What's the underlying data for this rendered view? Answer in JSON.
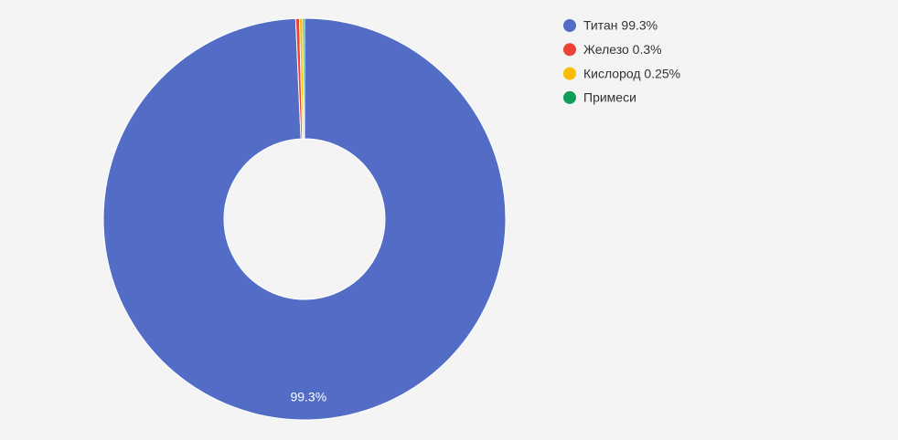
{
  "chart_data": {
    "type": "donut",
    "categories": [
      "Титан 99.3%",
      "Железо 0.3%",
      "Кислород 0.25%",
      "Примеси"
    ],
    "values": [
      99.3,
      0.3,
      0.25,
      0.15
    ],
    "value_labels": [
      "99.3%",
      null,
      null,
      null
    ],
    "colors": [
      "#536dc6",
      "#ea4335",
      "#fbbc04",
      "#0f9d58"
    ],
    "legend": "right"
  }
}
